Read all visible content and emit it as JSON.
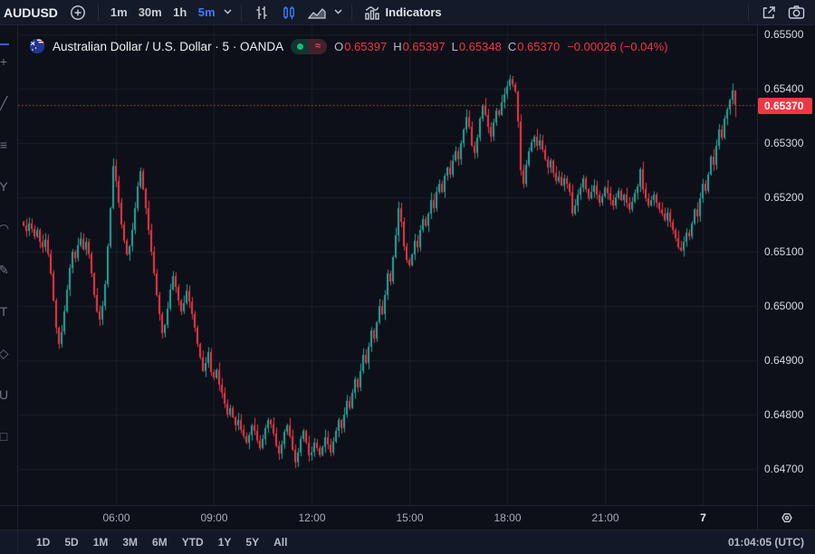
{
  "toolbar": {
    "symbol": "AUDUSD",
    "timeframes": [
      {
        "label": "1m",
        "active": false
      },
      {
        "label": "30m",
        "active": false
      },
      {
        "label": "1h",
        "active": false
      },
      {
        "label": "5m",
        "active": true
      }
    ],
    "indicators_label": "Indicators",
    "accent_blue": "#3e7bff"
  },
  "header": {
    "title": "Australian Dollar / U.S. Dollar · 5 · OANDA",
    "status": {
      "approx_symbol": "≈"
    },
    "ohlc": {
      "o_label": "O",
      "o": "0.65397",
      "h_label": "H",
      "h": "0.65397",
      "l_label": "L",
      "l": "0.65348",
      "c_label": "C",
      "c": "0.65370",
      "change": "−0.00026 (−0.04%)"
    }
  },
  "chart_data": {
    "type": "candlestick",
    "symbol": "AUDUSD",
    "description": "Australian Dollar / U.S. Dollar",
    "interval_minutes": 5,
    "exchange": "OANDA",
    "start_time": "03:10",
    "unit": 1e-05,
    "first_open_e5": 65155,
    "closes_e5": [
      65148,
      65138,
      65152,
      65142,
      65128,
      65140,
      65118,
      65108,
      65122,
      65096,
      65060,
      65010,
      64960,
      64930,
      64952,
      64990,
      65030,
      65070,
      65100,
      65088,
      65112,
      65124,
      65104,
      65118,
      65096,
      65060,
      65020,
      64990,
      64975,
      65000,
      65040,
      65110,
      65180,
      65258,
      65230,
      65190,
      65150,
      65120,
      65095,
      65110,
      65140,
      65180,
      65220,
      65248,
      65215,
      65180,
      65140,
      65100,
      65060,
      65020,
      64985,
      64950,
      64965,
      64995,
      65030,
      65055,
      65035,
      65010,
      64990,
      65005,
      65028,
      65008,
      64985,
      64960,
      64930,
      64905,
      64880,
      64895,
      64915,
      64878,
      64868,
      64882,
      64855,
      64840,
      64820,
      64800,
      64812,
      64795,
      64780,
      64790,
      64772,
      64760,
      64748,
      64762,
      64780,
      64770,
      64752,
      64738,
      64755,
      64775,
      64790,
      64782,
      64765,
      64742,
      64728,
      64745,
      64768,
      64780,
      64760,
      64735,
      64712,
      64730,
      64755,
      64770,
      64748,
      64725,
      64730,
      64748,
      64738,
      64725,
      64740,
      64758,
      64745,
      64730,
      64750,
      64770,
      64790,
      64775,
      64800,
      64825,
      64812,
      64840,
      64865,
      64850,
      64880,
      64910,
      64895,
      64925,
      64955,
      64940,
      64970,
      65000,
      64985,
      65020,
      65060,
      65045,
      65090,
      65130,
      65180,
      65155,
      65110,
      65085,
      65075,
      65095,
      65120,
      65108,
      65140,
      65160,
      65148,
      65170,
      65195,
      65180,
      65210,
      65225,
      65210,
      65240,
      65255,
      65242,
      65268,
      65285,
      65270,
      65300,
      65325,
      65348,
      65330,
      65295,
      65282,
      65310,
      65345,
      65370,
      65352,
      65330,
      65312,
      65338,
      65360,
      65352,
      65375,
      65390,
      65405,
      65418,
      65408,
      65395,
      65340,
      65250,
      65225,
      65260,
      65285,
      65302,
      65312,
      65295,
      65305,
      65288,
      65270,
      65255,
      65268,
      65245,
      65230,
      65238,
      65222,
      65235,
      65225,
      65210,
      65170,
      65185,
      65205,
      65218,
      65235,
      65215,
      65198,
      65210,
      65222,
      65205,
      65190,
      65202,
      65218,
      65208,
      65195,
      65185,
      65200,
      65212,
      65195,
      65205,
      65190,
      65178,
      65192,
      65208,
      65220,
      65252,
      65215,
      65198,
      65185,
      65195,
      65205,
      65190,
      65178,
      65170,
      65158,
      65172,
      65155,
      65140,
      65125,
      65108,
      65102,
      65118,
      65135,
      65128,
      65152,
      65178,
      65165,
      65198,
      65225,
      65212,
      65242,
      65275,
      65260,
      65295,
      65325,
      65310,
      65345,
      65362,
      65380,
      65397,
      65370
    ],
    "last_candle": {
      "open": 0.65397,
      "high": 0.65397,
      "low": 0.65348,
      "close": 0.6537
    },
    "last_price": 0.6537,
    "y_axis": {
      "min": 0.64633,
      "max": 0.65517,
      "ticks": [
        0.655,
        0.654,
        0.653,
        0.652,
        0.651,
        0.65,
        0.649,
        0.648,
        0.647
      ]
    },
    "x_ticks": [
      {
        "label": "06:00",
        "index": 34,
        "emphasis": false
      },
      {
        "label": "09:00",
        "index": 70,
        "emphasis": false
      },
      {
        "label": "12:00",
        "index": 106,
        "emphasis": false
      },
      {
        "label": "15:00",
        "index": 142,
        "emphasis": false
      },
      {
        "label": "18:00",
        "index": 178,
        "emphasis": false
      },
      {
        "label": "21:00",
        "index": 214,
        "emphasis": false
      },
      {
        "label": "7",
        "index": 250,
        "emphasis": true
      }
    ],
    "colors": {
      "up": "#26a69a",
      "down": "#f23645",
      "grid": "rgba(197,203,224,0.07)",
      "last_line": "#f23645",
      "last_label_bg": "#f23645"
    },
    "legend_grid": true
  },
  "price_axis": {
    "last_price_label": "0.65370"
  },
  "sidebar": {
    "tools": [
      {
        "name": "cursor-tool",
        "glyph": "+"
      },
      {
        "name": "trend-line-tool",
        "glyph": "╱"
      },
      {
        "name": "fib-retracement-tool",
        "glyph": "≡"
      },
      {
        "name": "pitchfork-tool",
        "glyph": "Y"
      },
      {
        "name": "arc-tool",
        "glyph": "◠"
      },
      {
        "name": "brush-tool",
        "glyph": "✎"
      },
      {
        "name": "text-tool",
        "glyph": "T"
      },
      {
        "name": "shape-tool",
        "glyph": "◇"
      },
      {
        "name": "magnet-tool",
        "glyph": "U"
      },
      {
        "name": "measure-tool",
        "glyph": "□"
      }
    ]
  },
  "bottom_toolbar": {
    "ranges": [
      "1D",
      "5D",
      "1M",
      "3M",
      "6M",
      "YTD",
      "1Y",
      "5Y",
      "All"
    ],
    "clock": "01:04:05 (UTC)"
  }
}
